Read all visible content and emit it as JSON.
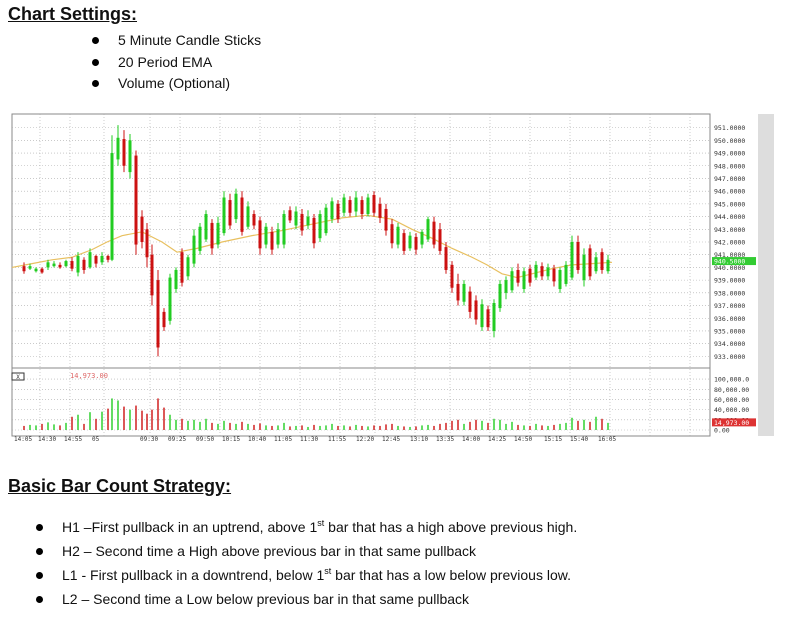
{
  "chart_settings": {
    "heading": "Chart Settings:",
    "items": [
      "5 Minute Candle Sticks",
      "20 Period EMA",
      "Volume (Optional)"
    ]
  },
  "strategy": {
    "heading": "Basic Bar Count Strategy:",
    "items": [
      {
        "before": "H1 –First pullback in an uptrend, above 1",
        "sup": "st",
        "after": " bar that has a high above previous high."
      },
      {
        "before": "H2 – Second time a High above previous bar in that same pullback",
        "sup": "",
        "after": ""
      },
      {
        "before": "L1  - First pullback in a downtrend, below 1",
        "sup": "st",
        "after": " bar that has a low below previous low."
      },
      {
        "before": "L2 – Second time a Low below previous bar in that same pullback",
        "sup": "",
        "after": ""
      }
    ]
  },
  "chart_data": {
    "type": "candlestick",
    "price_axis": {
      "labels": [
        "951.0000",
        "950.0000",
        "949.0000",
        "948.0000",
        "947.0000",
        "946.0000",
        "945.0000",
        "944.0000",
        "943.0000",
        "942.0000",
        "941.0000",
        "940.0000",
        "939.0000",
        "938.0000",
        "937.0000",
        "936.0000",
        "935.0000",
        "934.0000",
        "933.0000"
      ],
      "range": [
        932.4,
        951.6
      ],
      "current_price": "940.5000"
    },
    "volume_axis": {
      "labels": [
        "100,000.0",
        "80,000.00",
        "60,000.00",
        "40,000.00",
        "20,000.00",
        "0.00"
      ],
      "range": [
        0,
        110000
      ],
      "current_volume": "14,973.00"
    },
    "time_labels": [
      "14:05",
      "14:30",
      "14:55",
      "05",
      "09:30",
      "09:25",
      "09:50",
      "10:15",
      "10:40",
      "11:05",
      "11:30",
      "11:55",
      "12:20",
      "12:45",
      "13:10",
      "13:35",
      "14:00",
      "14:25",
      "14:50",
      "15:15",
      "15:40",
      "16:05"
    ],
    "volume_readout": "14,973.00",
    "colors": {
      "up": "#22cc22",
      "down": "#cc1111",
      "ema": "#e8c060",
      "grid": "#aaaaaa"
    },
    "ema_points": [
      [
        0,
        940.0
      ],
      [
        20,
        940.3
      ],
      [
        40,
        940.6
      ],
      [
        60,
        940.8
      ],
      [
        80,
        941.4
      ],
      [
        95,
        942.0
      ],
      [
        110,
        942.5
      ],
      [
        130,
        942.8
      ],
      [
        150,
        942.0
      ],
      [
        165,
        941.2
      ],
      [
        185,
        941.5
      ],
      [
        210,
        942.0
      ],
      [
        240,
        942.5
      ],
      [
        270,
        942.9
      ],
      [
        300,
        943.4
      ],
      [
        330,
        943.9
      ],
      [
        355,
        944.1
      ],
      [
        380,
        943.8
      ],
      [
        400,
        943.0
      ],
      [
        420,
        942.3
      ],
      [
        440,
        941.5
      ],
      [
        460,
        940.8
      ],
      [
        475,
        940.2
      ],
      [
        490,
        939.5
      ],
      [
        505,
        939.2
      ],
      [
        520,
        939.5
      ],
      [
        540,
        939.9
      ],
      [
        560,
        940.2
      ],
      [
        580,
        940.3
      ],
      [
        600,
        940.4
      ]
    ],
    "candles": [
      [
        12,
        939.5,
        940.4,
        940.1,
        939.7
      ],
      [
        18,
        939.8,
        940.3,
        939.9,
        940.1
      ],
      [
        24,
        939.6,
        940.0,
        939.7,
        939.9
      ],
      [
        30,
        939.5,
        940.0,
        939.9,
        939.6
      ],
      [
        36,
        939.8,
        940.6,
        940.0,
        940.4
      ],
      [
        42,
        940.0,
        940.5,
        940.1,
        940.3
      ],
      [
        48,
        939.9,
        940.4,
        940.2,
        940.0
      ],
      [
        54,
        940.0,
        940.6,
        940.1,
        940.5
      ],
      [
        60,
        939.7,
        940.8,
        940.5,
        939.9
      ],
      [
        66,
        939.3,
        941.2,
        939.6,
        940.9
      ],
      [
        72,
        939.5,
        940.8,
        940.6,
        939.8
      ],
      [
        78,
        939.9,
        941.5,
        940.0,
        941.2
      ],
      [
        84,
        940.0,
        941.0,
        940.9,
        940.3
      ],
      [
        90,
        940.2,
        941.2,
        940.4,
        940.9
      ],
      [
        96,
        940.4,
        941.0,
        940.9,
        940.6
      ],
      [
        100,
        940.5,
        950.4,
        940.6,
        949.0
      ],
      [
        106,
        948.0,
        951.2,
        948.5,
        950.2
      ],
      [
        112,
        947.5,
        950.8,
        950.1,
        948.0
      ],
      [
        118,
        947.0,
        950.5,
        947.5,
        950.0
      ],
      [
        124,
        941.0,
        949.2,
        948.8,
        941.8
      ],
      [
        130,
        941.5,
        944.5,
        944.0,
        942.0
      ],
      [
        135,
        940.0,
        943.5,
        943.0,
        940.8
      ],
      [
        140,
        937.0,
        941.8,
        941.0,
        937.8
      ],
      [
        146,
        933.0,
        939.8,
        939.0,
        933.7
      ],
      [
        152,
        935.0,
        936.8,
        936.5,
        935.3
      ],
      [
        158,
        935.5,
        939.5,
        935.8,
        939.2
      ],
      [
        164,
        938.0,
        940.0,
        938.3,
        939.8
      ],
      [
        170,
        938.5,
        941.5,
        941.2,
        938.8
      ],
      [
        176,
        939.0,
        941.0,
        939.3,
        940.8
      ],
      [
        182,
        940.0,
        943.0,
        940.3,
        942.5
      ],
      [
        188,
        941.0,
        943.5,
        941.3,
        943.2
      ],
      [
        194,
        942.0,
        944.5,
        942.2,
        944.2
      ],
      [
        200,
        941.0,
        943.8,
        943.5,
        941.5
      ],
      [
        206,
        941.5,
        944.0,
        941.8,
        943.5
      ],
      [
        212,
        942.5,
        946.0,
        942.7,
        945.5
      ],
      [
        218,
        943.0,
        945.8,
        945.3,
        943.3
      ],
      [
        224,
        943.5,
        946.2,
        943.8,
        945.8
      ],
      [
        230,
        942.5,
        946.0,
        945.5,
        942.8
      ],
      [
        236,
        943.0,
        945.2,
        943.2,
        944.8
      ],
      [
        242,
        943.0,
        944.5,
        944.2,
        943.3
      ],
      [
        248,
        941.0,
        944.0,
        943.7,
        941.5
      ],
      [
        254,
        941.5,
        943.5,
        941.8,
        943.2
      ],
      [
        260,
        941.0,
        943.2,
        942.8,
        941.4
      ],
      [
        266,
        941.5,
        943.5,
        941.8,
        943.0
      ],
      [
        272,
        941.5,
        944.5,
        941.8,
        944.2
      ],
      [
        278,
        943.5,
        944.8,
        944.5,
        943.7
      ],
      [
        284,
        943.0,
        944.8,
        943.3,
        944.4
      ],
      [
        290,
        942.5,
        944.6,
        944.2,
        942.9
      ],
      [
        296,
        943.0,
        944.5,
        943.3,
        944.0
      ],
      [
        302,
        941.5,
        944.2,
        943.9,
        941.9
      ],
      [
        308,
        942.0,
        944.5,
        942.3,
        944.2
      ],
      [
        314,
        942.5,
        945.0,
        942.7,
        944.7
      ],
      [
        320,
        943.5,
        945.5,
        943.8,
        945.2
      ],
      [
        326,
        943.5,
        945.3,
        945.0,
        943.8
      ],
      [
        332,
        944.0,
        945.8,
        944.3,
        945.5
      ],
      [
        338,
        944.0,
        945.6,
        945.3,
        944.3
      ],
      [
        344,
        944.0,
        946.0,
        944.4,
        945.5
      ],
      [
        350,
        943.8,
        945.6,
        945.3,
        944.2
      ],
      [
        356,
        944.0,
        945.8,
        944.2,
        945.5
      ],
      [
        362,
        944.0,
        946.0,
        945.7,
        944.3
      ],
      [
        368,
        943.5,
        945.5,
        945.0,
        943.9
      ],
      [
        374,
        942.5,
        945.0,
        944.6,
        942.9
      ],
      [
        380,
        941.5,
        943.8,
        943.4,
        941.9
      ],
      [
        386,
        941.5,
        943.5,
        941.8,
        943.2
      ],
      [
        392,
        941.0,
        943.0,
        942.7,
        941.3
      ],
      [
        398,
        941.3,
        942.8,
        941.5,
        942.5
      ],
      [
        404,
        941.0,
        942.7,
        942.4,
        941.4
      ],
      [
        410,
        941.5,
        943.0,
        941.8,
        942.8
      ],
      [
        416,
        942.0,
        944.0,
        942.2,
        943.8
      ],
      [
        422,
        941.5,
        944.0,
        943.6,
        941.8
      ],
      [
        428,
        941.0,
        943.5,
        943.0,
        941.3
      ],
      [
        434,
        939.5,
        942.0,
        941.6,
        939.8
      ],
      [
        440,
        938.0,
        940.5,
        940.2,
        938.4
      ],
      [
        446,
        937.0,
        939.5,
        938.7,
        937.4
      ],
      [
        452,
        937.0,
        939.0,
        937.3,
        938.7
      ],
      [
        458,
        936.0,
        938.5,
        938.1,
        936.5
      ],
      [
        464,
        935.5,
        937.8,
        937.4,
        935.9
      ],
      [
        470,
        935.0,
        937.5,
        935.3,
        937.1
      ],
      [
        476,
        935.0,
        937.0,
        936.7,
        935.3
      ],
      [
        482,
        934.5,
        937.5,
        935.0,
        937.2
      ],
      [
        488,
        936.5,
        939.0,
        936.8,
        938.7
      ],
      [
        494,
        937.5,
        939.3,
        938.0,
        939.0
      ],
      [
        500,
        938.0,
        940.0,
        938.2,
        939.7
      ],
      [
        506,
        938.5,
        940.3,
        939.8,
        938.8
      ],
      [
        512,
        938.0,
        940.0,
        938.3,
        939.7
      ],
      [
        518,
        938.5,
        940.2,
        939.9,
        938.8
      ],
      [
        524,
        939.0,
        940.5,
        939.2,
        940.2
      ],
      [
        530,
        939.0,
        940.4,
        940.1,
        939.3
      ],
      [
        536,
        939.0,
        940.3,
        939.3,
        940.0
      ],
      [
        542,
        938.5,
        940.2,
        939.9,
        938.9
      ],
      [
        548,
        938.0,
        940.0,
        938.3,
        939.8
      ],
      [
        554,
        938.5,
        940.5,
        938.7,
        940.2
      ],
      [
        560,
        939.0,
        942.5,
        939.2,
        942.0
      ],
      [
        566,
        939.5,
        942.5,
        942.0,
        939.8
      ],
      [
        572,
        938.5,
        941.5,
        939.0,
        941.0
      ],
      [
        578,
        939.0,
        941.8,
        941.5,
        939.3
      ],
      [
        584,
        939.5,
        941.2,
        939.7,
        940.8
      ],
      [
        590,
        939.5,
        941.5,
        941.2,
        939.8
      ],
      [
        596,
        939.5,
        941.0,
        939.7,
        940.6
      ]
    ],
    "volumes": [
      [
        12,
        8000,
        0
      ],
      [
        18,
        10000,
        1
      ],
      [
        24,
        9000,
        1
      ],
      [
        30,
        12000,
        0
      ],
      [
        36,
        15000,
        1
      ],
      [
        42,
        11000,
        1
      ],
      [
        48,
        9000,
        0
      ],
      [
        54,
        14000,
        1
      ],
      [
        60,
        26000,
        0
      ],
      [
        66,
        30000,
        1
      ],
      [
        72,
        12000,
        0
      ],
      [
        78,
        35000,
        1
      ],
      [
        84,
        22000,
        0
      ],
      [
        90,
        36000,
        1
      ],
      [
        96,
        42000,
        0
      ],
      [
        100,
        62000,
        1
      ],
      [
        106,
        58000,
        1
      ],
      [
        112,
        46000,
        0
      ],
      [
        118,
        40000,
        1
      ],
      [
        124,
        48000,
        0
      ],
      [
        130,
        38000,
        0
      ],
      [
        135,
        32000,
        0
      ],
      [
        140,
        40000,
        0
      ],
      [
        146,
        62000,
        0
      ],
      [
        152,
        44000,
        0
      ],
      [
        158,
        30000,
        1
      ],
      [
        164,
        20000,
        1
      ],
      [
        170,
        22000,
        0
      ],
      [
        176,
        18000,
        1
      ],
      [
        182,
        20000,
        1
      ],
      [
        188,
        16000,
        1
      ],
      [
        194,
        22000,
        1
      ],
      [
        200,
        14000,
        0
      ],
      [
        206,
        12000,
        1
      ],
      [
        212,
        18000,
        1
      ],
      [
        218,
        14000,
        0
      ],
      [
        224,
        12000,
        1
      ],
      [
        230,
        16000,
        0
      ],
      [
        236,
        12000,
        1
      ],
      [
        242,
        10000,
        0
      ],
      [
        248,
        13000,
        0
      ],
      [
        254,
        9000,
        1
      ],
      [
        260,
        8000,
        0
      ],
      [
        266,
        9000,
        1
      ],
      [
        272,
        14000,
        1
      ],
      [
        278,
        7000,
        0
      ],
      [
        284,
        8000,
        1
      ],
      [
        290,
        9000,
        0
      ],
      [
        296,
        6000,
        1
      ],
      [
        302,
        10000,
        0
      ],
      [
        308,
        8000,
        1
      ],
      [
        314,
        9000,
        1
      ],
      [
        320,
        12000,
        1
      ],
      [
        326,
        8000,
        0
      ],
      [
        332,
        9000,
        1
      ],
      [
        338,
        7000,
        0
      ],
      [
        344,
        10000,
        1
      ],
      [
        350,
        8000,
        0
      ],
      [
        356,
        7000,
        1
      ],
      [
        362,
        9000,
        0
      ],
      [
        368,
        8000,
        0
      ],
      [
        374,
        11000,
        0
      ],
      [
        380,
        12000,
        0
      ],
      [
        386,
        8000,
        1
      ],
      [
        392,
        7000,
        0
      ],
      [
        398,
        6000,
        1
      ],
      [
        404,
        7000,
        0
      ],
      [
        410,
        9000,
        1
      ],
      [
        416,
        10000,
        1
      ],
      [
        422,
        8000,
        0
      ],
      [
        428,
        12000,
        0
      ],
      [
        434,
        14000,
        0
      ],
      [
        440,
        18000,
        0
      ],
      [
        446,
        20000,
        0
      ],
      [
        452,
        12000,
        1
      ],
      [
        458,
        16000,
        0
      ],
      [
        464,
        20000,
        0
      ],
      [
        470,
        18000,
        1
      ],
      [
        476,
        14000,
        0
      ],
      [
        482,
        22000,
        1
      ],
      [
        488,
        20000,
        1
      ],
      [
        494,
        12000,
        1
      ],
      [
        500,
        16000,
        1
      ],
      [
        506,
        10000,
        0
      ],
      [
        512,
        9000,
        1
      ],
      [
        518,
        8000,
        0
      ],
      [
        524,
        12000,
        1
      ],
      [
        530,
        9000,
        0
      ],
      [
        536,
        8000,
        1
      ],
      [
        542,
        10000,
        0
      ],
      [
        548,
        12000,
        1
      ],
      [
        554,
        14000,
        1
      ],
      [
        560,
        24000,
        1
      ],
      [
        566,
        18000,
        0
      ],
      [
        572,
        20000,
        1
      ],
      [
        578,
        16000,
        0
      ],
      [
        584,
        26000,
        1
      ],
      [
        590,
        22000,
        0
      ],
      [
        596,
        14000,
        1
      ]
    ]
  }
}
